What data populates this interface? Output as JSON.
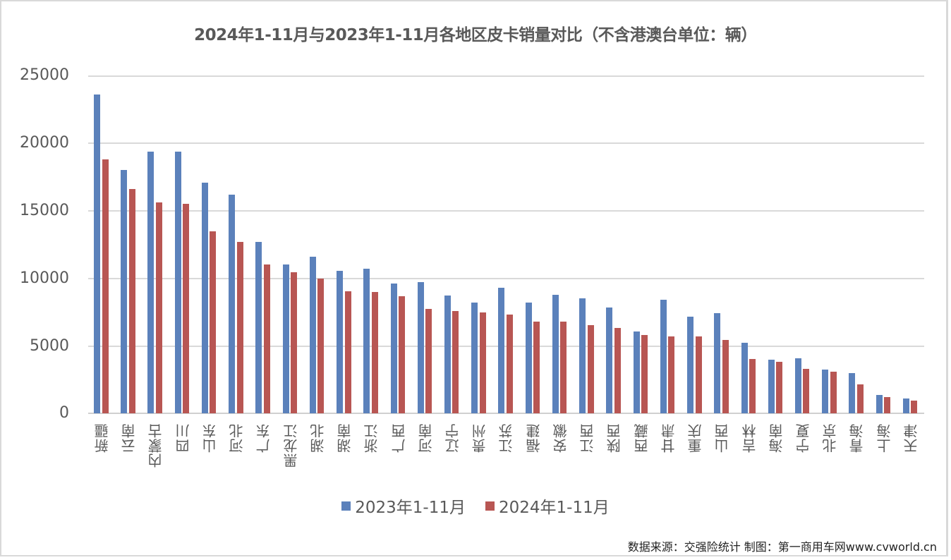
{
  "chart_data": {
    "type": "bar",
    "title": "2024年1-11月与2023年1-11月各地区皮卡销量对比（不含港澳台单位：辆）",
    "xlabel": "",
    "ylabel": "",
    "ylim": [
      0,
      25000
    ],
    "yticks": [
      0,
      5000,
      10000,
      15000,
      20000,
      25000
    ],
    "grid": true,
    "legend_position": "bottom",
    "categories": [
      "新疆",
      "云南",
      "内蒙古",
      "四川",
      "山东",
      "河北",
      "广东",
      "黑龙江",
      "湖北",
      "湖南",
      "浙江",
      "广西",
      "河南",
      "辽宁",
      "贵州",
      "江苏",
      "福建",
      "安徽",
      "江西",
      "陕西",
      "西藏",
      "甘肃",
      "重庆",
      "山西",
      "吉林",
      "海南",
      "宁夏",
      "北京",
      "青海",
      "上海",
      "天津"
    ],
    "series": [
      {
        "name": "2023年1-11月",
        "color": "#5b81bb",
        "values": [
          23600,
          18000,
          19400,
          19400,
          17100,
          16200,
          12700,
          11000,
          11600,
          10550,
          10700,
          9600,
          9700,
          8700,
          8200,
          9300,
          8200,
          8800,
          8500,
          7850,
          6050,
          8400,
          7150,
          7400,
          5200,
          3950,
          4100,
          3250,
          3000,
          1350,
          1100
        ]
      },
      {
        "name": "2024年1-11月",
        "color": "#b85653",
        "values": [
          18800,
          16600,
          15600,
          15500,
          13500,
          12700,
          11000,
          10450,
          10000,
          9050,
          9000,
          8650,
          7750,
          7600,
          7450,
          7300,
          6800,
          6800,
          6550,
          6300,
          5800,
          5700,
          5700,
          5450,
          4000,
          3800,
          3300,
          3100,
          2150,
          1200,
          950
        ]
      }
    ]
  },
  "ticks": {
    "y": [
      "25000",
      "20000",
      "15000",
      "10000",
      "5000",
      "0"
    ]
  },
  "legend": {
    "items": [
      "2023年1-11月",
      "2024年1-11月"
    ]
  },
  "footer": {
    "source": "数据来源：交强险统计 制图：第一商用车网www.cvworld.cn"
  }
}
